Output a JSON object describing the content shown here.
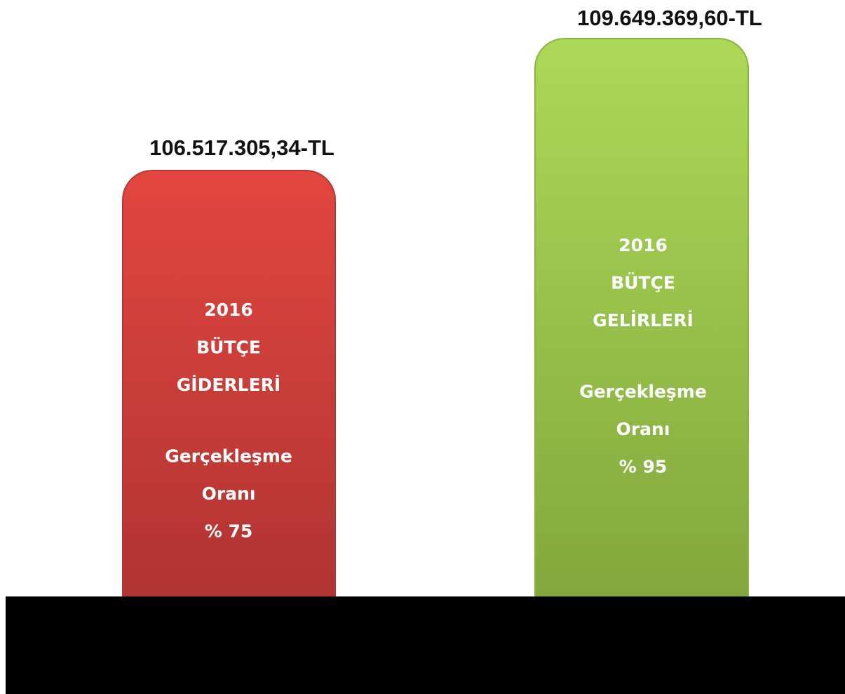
{
  "bars": [
    {
      "amount": "106.517.305,34-TL",
      "title": [
        "2016",
        "BÜTÇE",
        "GİDERLERİ"
      ],
      "rate": [
        "Gerçekleşme",
        "Oranı",
        "% 75"
      ]
    },
    {
      "amount": "109.649.369,60-TL",
      "title": [
        "2016",
        "BÜTÇE",
        "GELİRLERİ"
      ],
      "rate": [
        "Gerçekleşme",
        "Oranı",
        "% 95"
      ]
    }
  ]
}
